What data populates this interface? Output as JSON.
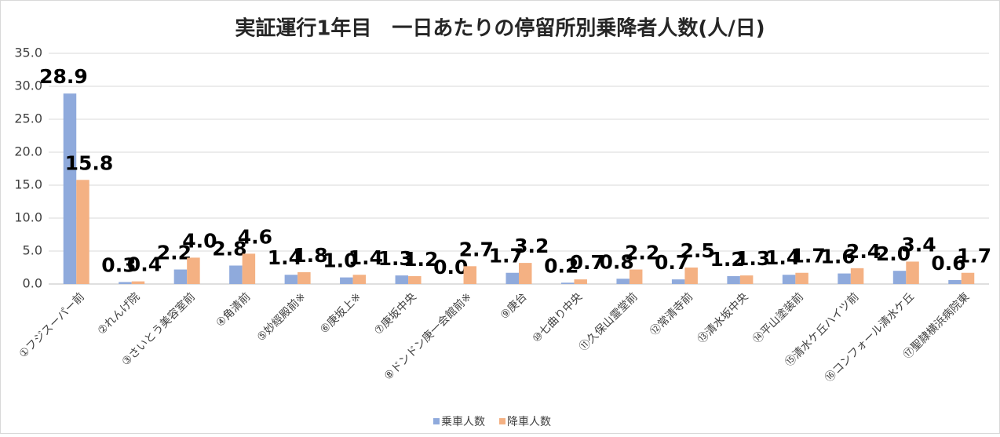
{
  "chart_data": {
    "type": "bar",
    "title": "実証運行1年目　一日あたりの停留所別乗降者人数(人/日)",
    "categories": [
      "①フジスーパー前",
      "②れんげ院",
      "③さいとう美容室前",
      "④角清前",
      "⑤妙經殿前※",
      "⑥庚坂上※",
      "⑦庚坂中央",
      "⑧ドンドン庚一会館前※",
      "⑨庚台",
      "⑩七曲り中央",
      "⑪久保山霊堂前",
      "⑫常清寺前",
      "⑬清水坂中央",
      "⑭平山塗装前",
      "⑮清水ケ丘ハイツ前",
      "⑯コンフォール清水ケ丘",
      "⑰聖隷横浜病院東"
    ],
    "series": [
      {
        "name": "乗車人数",
        "color": "#8faadc",
        "values": [
          28.9,
          0.3,
          2.2,
          2.8,
          1.4,
          1.0,
          1.3,
          0.0,
          1.7,
          0.2,
          0.8,
          0.7,
          1.2,
          1.4,
          1.6,
          2.0,
          0.6
        ],
        "value_labels": [
          "28.9",
          "0.3",
          "2.2",
          "2.8",
          "1.4",
          "1.0",
          "1.3",
          "0.0",
          "1.7",
          "0.2",
          "0.8",
          "0.7",
          "1.2",
          "1.4",
          "1.6",
          "2.0",
          "0.6"
        ]
      },
      {
        "name": "降車人数",
        "color": "#f4b183",
        "values": [
          15.8,
          0.4,
          4.0,
          4.6,
          1.8,
          1.4,
          1.2,
          2.7,
          3.2,
          0.7,
          2.2,
          2.5,
          1.3,
          1.7,
          2.4,
          3.4,
          1.7
        ],
        "value_labels": [
          "15.8",
          "0.4",
          "4.0",
          "4.6",
          "1.8",
          "1.4",
          "1.2",
          "2.7",
          "3.2",
          "0.7",
          "2.2",
          "2.5",
          "1.3",
          "1.7",
          "2.4",
          "3.4",
          "1.7"
        ]
      }
    ],
    "ylim": [
      0,
      35
    ],
    "yticks": [
      {
        "value": 0,
        "label": "0.0"
      },
      {
        "value": 5,
        "label": "5.0"
      },
      {
        "value": 10,
        "label": "10.0"
      },
      {
        "value": 15,
        "label": "15.0"
      },
      {
        "value": 20,
        "label": "20.0"
      },
      {
        "value": 25,
        "label": "25.0"
      },
      {
        "value": 30,
        "label": "30.0"
      },
      {
        "value": 35,
        "label": "35.0"
      }
    ],
    "grid": true,
    "legend": "bottom"
  }
}
